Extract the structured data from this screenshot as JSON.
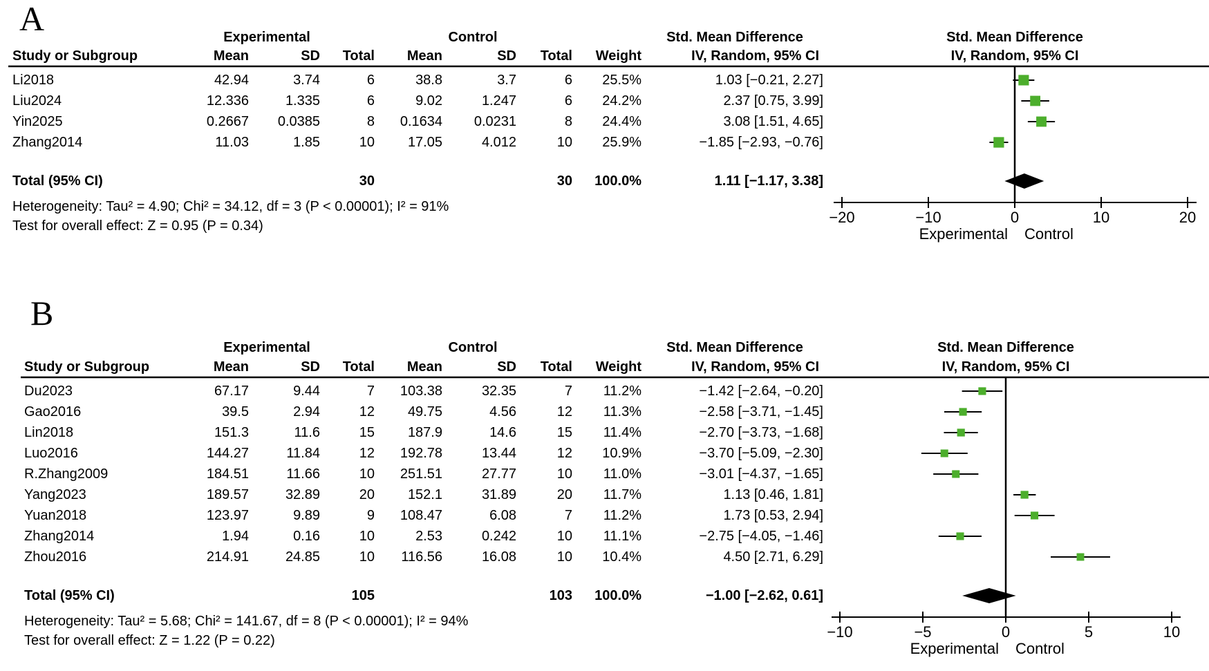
{
  "chart_data": [
    {
      "type": "forest",
      "panel_label": "A",
      "group_headers": {
        "experimental": "Experimental",
        "control": "Control",
        "smd": "Std. Mean Difference"
      },
      "plot_header_line1": "Std. Mean Difference",
      "plot_header_line2": "IV, Random, 95% CI",
      "columns": [
        "Study or Subgroup",
        "Mean",
        "SD",
        "Total",
        "Mean",
        "SD",
        "Total",
        "Weight",
        "IV, Random, 95% CI"
      ],
      "studies": [
        {
          "study": "Li2018",
          "mean1": "42.94",
          "sd1": "3.74",
          "total1": "6",
          "mean2": "38.8",
          "sd2": "3.7",
          "total2": "6",
          "weight": "25.5%",
          "ci_text": "1.03 [−0.21, 2.27]",
          "smd": 1.03,
          "ci_low": -0.21,
          "ci_high": 2.27
        },
        {
          "study": "Liu2024",
          "mean1": "12.336",
          "sd1": "1.335",
          "total1": "6",
          "mean2": "9.02",
          "sd2": "1.247",
          "total2": "6",
          "weight": "24.2%",
          "ci_text": "2.37 [0.75, 3.99]",
          "smd": 2.37,
          "ci_low": 0.75,
          "ci_high": 3.99
        },
        {
          "study": "Yin2025",
          "mean1": "0.2667",
          "sd1": "0.0385",
          "total1": "8",
          "mean2": "0.1634",
          "sd2": "0.0231",
          "total2": "8",
          "weight": "24.4%",
          "ci_text": "3.08 [1.51, 4.65]",
          "smd": 3.08,
          "ci_low": 1.51,
          "ci_high": 4.65
        },
        {
          "study": "Zhang2014",
          "mean1": "11.03",
          "sd1": "1.85",
          "total1": "10",
          "mean2": "17.05",
          "sd2": "4.012",
          "total2": "10",
          "weight": "25.9%",
          "ci_text": "−1.85 [−2.93, −0.76]",
          "smd": -1.85,
          "ci_low": -2.93,
          "ci_high": -0.76
        }
      ],
      "total": {
        "label": "Total (95% CI)",
        "total1": "30",
        "total2": "30",
        "weight": "100.0%",
        "ci_text": "1.11 [−1.17, 3.38]",
        "smd": 1.11,
        "ci_low": -1.17,
        "ci_high": 3.38
      },
      "heterogeneity": "Heterogeneity: Tau² = 4.90; Chi² = 34.12, df = 3 (P < 0.00001); I² = 91%",
      "overall_effect": "Test for overall effect: Z = 0.95 (P = 0.34)",
      "axis": {
        "ticks": [
          -20,
          -10,
          0,
          10,
          20
        ],
        "min": -20,
        "max": 20,
        "left_label": "Experimental",
        "right_label": "Control"
      },
      "marker_color": "#4cae2c",
      "diamond_color": "#000000"
    },
    {
      "type": "forest",
      "panel_label": "B",
      "group_headers": {
        "experimental": "Experimental",
        "control": "Control",
        "smd": "Std. Mean Difference"
      },
      "plot_header_line1": "Std. Mean Difference",
      "plot_header_line2": "IV, Random, 95% CI",
      "columns": [
        "Study or Subgroup",
        "Mean",
        "SD",
        "Total",
        "Mean",
        "SD",
        "Total",
        "Weight",
        "IV, Random, 95% CI"
      ],
      "studies": [
        {
          "study": "Du2023",
          "mean1": "67.17",
          "sd1": "9.44",
          "total1": "7",
          "mean2": "103.38",
          "sd2": "32.35",
          "total2": "7",
          "weight": "11.2%",
          "ci_text": "−1.42 [−2.64, −0.20]",
          "smd": -1.42,
          "ci_low": -2.64,
          "ci_high": -0.2
        },
        {
          "study": "Gao2016",
          "mean1": "39.5",
          "sd1": "2.94",
          "total1": "12",
          "mean2": "49.75",
          "sd2": "4.56",
          "total2": "12",
          "weight": "11.3%",
          "ci_text": "−2.58 [−3.71, −1.45]",
          "smd": -2.58,
          "ci_low": -3.71,
          "ci_high": -1.45
        },
        {
          "study": "Lin2018",
          "mean1": "151.3",
          "sd1": "11.6",
          "total1": "15",
          "mean2": "187.9",
          "sd2": "14.6",
          "total2": "15",
          "weight": "11.4%",
          "ci_text": "−2.70 [−3.73, −1.68]",
          "smd": -2.7,
          "ci_low": -3.73,
          "ci_high": -1.68
        },
        {
          "study": "Luo2016",
          "mean1": "144.27",
          "sd1": "11.84",
          "total1": "12",
          "mean2": "192.78",
          "sd2": "13.44",
          "total2": "12",
          "weight": "10.9%",
          "ci_text": "−3.70 [−5.09, −2.30]",
          "smd": -3.7,
          "ci_low": -5.09,
          "ci_high": -2.3
        },
        {
          "study": "R.Zhang2009",
          "mean1": "184.51",
          "sd1": "11.66",
          "total1": "10",
          "mean2": "251.51",
          "sd2": "27.77",
          "total2": "10",
          "weight": "11.0%",
          "ci_text": "−3.01 [−4.37, −1.65]",
          "smd": -3.01,
          "ci_low": -4.37,
          "ci_high": -1.65
        },
        {
          "study": "Yang2023",
          "mean1": "189.57",
          "sd1": "32.89",
          "total1": "20",
          "mean2": "152.1",
          "sd2": "31.89",
          "total2": "20",
          "weight": "11.7%",
          "ci_text": "1.13 [0.46, 1.81]",
          "smd": 1.13,
          "ci_low": 0.46,
          "ci_high": 1.81
        },
        {
          "study": "Yuan2018",
          "mean1": "123.97",
          "sd1": "9.89",
          "total1": "9",
          "mean2": "108.47",
          "sd2": "6.08",
          "total2": "7",
          "weight": "11.2%",
          "ci_text": "1.73 [0.53, 2.94]",
          "smd": 1.73,
          "ci_low": 0.53,
          "ci_high": 2.94
        },
        {
          "study": "Zhang2014",
          "mean1": "1.94",
          "sd1": "0.16",
          "total1": "10",
          "mean2": "2.53",
          "sd2": "0.242",
          "total2": "10",
          "weight": "11.1%",
          "ci_text": "−2.75 [−4.05, −1.46]",
          "smd": -2.75,
          "ci_low": -4.05,
          "ci_high": -1.46
        },
        {
          "study": "Zhou2016",
          "mean1": "214.91",
          "sd1": "24.85",
          "total1": "10",
          "mean2": "116.56",
          "sd2": "16.08",
          "total2": "10",
          "weight": "10.4%",
          "ci_text": "4.50 [2.71, 6.29]",
          "smd": 4.5,
          "ci_low": 2.71,
          "ci_high": 6.29
        }
      ],
      "total": {
        "label": "Total (95% CI)",
        "total1": "105",
        "total2": "103",
        "weight": "100.0%",
        "ci_text": "−1.00 [−2.62, 0.61]",
        "smd": -1.0,
        "ci_low": -2.62,
        "ci_high": 0.61
      },
      "heterogeneity": "Heterogeneity: Tau² = 5.68; Chi² = 141.67, df = 8 (P < 0.00001); I² = 94%",
      "overall_effect": "Test for overall effect: Z = 1.22 (P = 0.22)",
      "axis": {
        "ticks": [
          -10,
          -5,
          0,
          5,
          10
        ],
        "min": -10,
        "max": 10,
        "left_label": "Experimental",
        "right_label": "Control"
      },
      "marker_color": "#4cae2c",
      "diamond_color": "#000000"
    }
  ]
}
